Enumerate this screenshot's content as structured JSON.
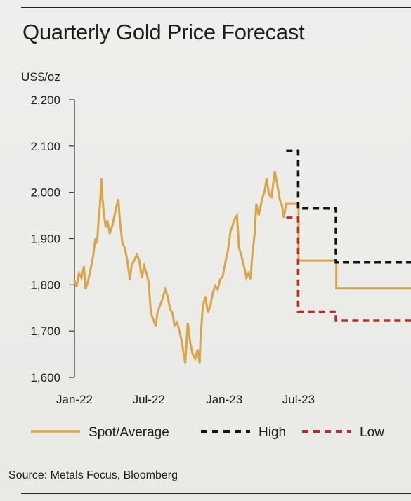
{
  "source": "Source: Metals Focus, Bloomberg",
  "colors": {
    "spot": "#d9a548",
    "high": "#141414",
    "low": "#b0302a",
    "axis": "#333333"
  },
  "chart_data": {
    "type": "line",
    "title": "Quarterly Gold Price Forecast",
    "ylabel": "US$/oz",
    "ylim": [
      1600,
      2200
    ],
    "yticks": [
      1600,
      1700,
      1800,
      1900,
      2000,
      2100,
      2200
    ],
    "ytick_labels": [
      "1,600",
      "1,700",
      "1,800",
      "1,900",
      "2,000",
      "2,100",
      "2,200"
    ],
    "xlim": [
      "2022-01-01",
      "2024-03-31"
    ],
    "xticks": [
      "2022-01-01",
      "2022-07-01",
      "2023-01-01",
      "2023-07-01"
    ],
    "xtick_labels": [
      "Jan-22",
      "Jul-22",
      "Jan-23",
      "Jul-23"
    ],
    "grid": false,
    "legend_position": "bottom",
    "series": [
      {
        "name": "Spot/Average",
        "style": "solid",
        "color": "#d9a548",
        "points": [
          [
            "2022-01-01",
            1810
          ],
          [
            "2022-01-06",
            1795
          ],
          [
            "2022-01-12",
            1825
          ],
          [
            "2022-01-18",
            1815
          ],
          [
            "2022-01-24",
            1840
          ],
          [
            "2022-01-28",
            1790
          ],
          [
            "2022-02-03",
            1808
          ],
          [
            "2022-02-09",
            1832
          ],
          [
            "2022-02-15",
            1860
          ],
          [
            "2022-02-21",
            1900
          ],
          [
            "2022-02-25",
            1890
          ],
          [
            "2022-03-01",
            1945
          ],
          [
            "2022-03-04",
            1970
          ],
          [
            "2022-03-08",
            2030
          ],
          [
            "2022-03-10",
            1990
          ],
          [
            "2022-03-14",
            1950
          ],
          [
            "2022-03-18",
            1925
          ],
          [
            "2022-03-22",
            1940
          ],
          [
            "2022-03-28",
            1910
          ],
          [
            "2022-04-04",
            1930
          ],
          [
            "2022-04-12",
            1965
          ],
          [
            "2022-04-18",
            1985
          ],
          [
            "2022-04-22",
            1935
          ],
          [
            "2022-04-28",
            1890
          ],
          [
            "2022-05-04",
            1880
          ],
          [
            "2022-05-10",
            1850
          ],
          [
            "2022-05-16",
            1810
          ],
          [
            "2022-05-20",
            1842
          ],
          [
            "2022-05-26",
            1852
          ],
          [
            "2022-06-02",
            1865
          ],
          [
            "2022-06-08",
            1852
          ],
          [
            "2022-06-14",
            1815
          ],
          [
            "2022-06-20",
            1840
          ],
          [
            "2022-06-27",
            1820
          ],
          [
            "2022-07-01",
            1805
          ],
          [
            "2022-07-06",
            1740
          ],
          [
            "2022-07-12",
            1725
          ],
          [
            "2022-07-18",
            1710
          ],
          [
            "2022-07-22",
            1738
          ],
          [
            "2022-07-28",
            1755
          ],
          [
            "2022-08-03",
            1768
          ],
          [
            "2022-08-10",
            1790
          ],
          [
            "2022-08-16",
            1775
          ],
          [
            "2022-08-22",
            1748
          ],
          [
            "2022-08-28",
            1738
          ],
          [
            "2022-09-02",
            1712
          ],
          [
            "2022-09-08",
            1718
          ],
          [
            "2022-09-14",
            1700
          ],
          [
            "2022-09-20",
            1675
          ],
          [
            "2022-09-24",
            1650
          ],
          [
            "2022-09-28",
            1630
          ],
          [
            "2022-10-04",
            1718
          ],
          [
            "2022-10-10",
            1675
          ],
          [
            "2022-10-16",
            1650
          ],
          [
            "2022-10-22",
            1640
          ],
          [
            "2022-10-28",
            1660
          ],
          [
            "2022-11-02",
            1630
          ],
          [
            "2022-11-04",
            1680
          ],
          [
            "2022-11-10",
            1755
          ],
          [
            "2022-11-16",
            1775
          ],
          [
            "2022-11-22",
            1740
          ],
          [
            "2022-11-28",
            1755
          ],
          [
            "2022-12-04",
            1782
          ],
          [
            "2022-12-10",
            1798
          ],
          [
            "2022-12-16",
            1790
          ],
          [
            "2022-12-22",
            1812
          ],
          [
            "2022-12-28",
            1818
          ],
          [
            "2023-01-04",
            1850
          ],
          [
            "2023-01-10",
            1875
          ],
          [
            "2023-01-16",
            1915
          ],
          [
            "2023-01-22",
            1930
          ],
          [
            "2023-01-26",
            1942
          ],
          [
            "2023-02-01",
            1950
          ],
          [
            "2023-02-06",
            1880
          ],
          [
            "2023-02-12",
            1862
          ],
          [
            "2023-02-18",
            1840
          ],
          [
            "2023-02-24",
            1815
          ],
          [
            "2023-03-01",
            1825
          ],
          [
            "2023-03-06",
            1812
          ],
          [
            "2023-03-10",
            1860
          ],
          [
            "2023-03-16",
            1910
          ],
          [
            "2023-03-20",
            1975
          ],
          [
            "2023-03-26",
            1950
          ],
          [
            "2023-04-03",
            1985
          ],
          [
            "2023-04-10",
            2005
          ],
          [
            "2023-04-14",
            2030
          ],
          [
            "2023-04-20",
            1995
          ],
          [
            "2023-04-26",
            1990
          ],
          [
            "2023-05-04",
            2045
          ],
          [
            "2023-05-10",
            2018
          ],
          [
            "2023-05-16",
            1985
          ],
          [
            "2023-05-22",
            1970
          ],
          [
            "2023-05-26",
            1945
          ],
          [
            "2023-06-01",
            1975
          ],
          [
            "2023-06-08",
            1975
          ],
          [
            "2023-06-12",
            1975
          ],
          [
            "2023-06-16",
            1975
          ],
          [
            "2023-06-20",
            1975
          ],
          [
            "2023-06-28",
            1975
          ],
          [
            "2023-07-01",
            1975
          ],
          [
            "2023-07-01",
            1852
          ],
          [
            "2023-09-30",
            1852
          ],
          [
            "2023-10-01",
            1852
          ],
          [
            "2023-10-01",
            1792
          ],
          [
            "2024-03-31",
            1792
          ]
        ]
      },
      {
        "name": "High",
        "style": "dashed",
        "color": "#141414",
        "points": [
          [
            "2023-06-01",
            2090
          ],
          [
            "2023-06-30",
            2090
          ],
          [
            "2023-06-30",
            1965
          ],
          [
            "2023-09-30",
            1965
          ],
          [
            "2023-09-30",
            1848
          ],
          [
            "2024-03-31",
            1848
          ]
        ]
      },
      {
        "name": "Low",
        "style": "dashed",
        "color": "#b0302a",
        "points": [
          [
            "2023-06-01",
            1945
          ],
          [
            "2023-06-30",
            1945
          ],
          [
            "2023-06-30",
            1742
          ],
          [
            "2023-09-30",
            1742
          ],
          [
            "2023-09-30",
            1723
          ],
          [
            "2024-03-31",
            1723
          ]
        ]
      }
    ]
  }
}
